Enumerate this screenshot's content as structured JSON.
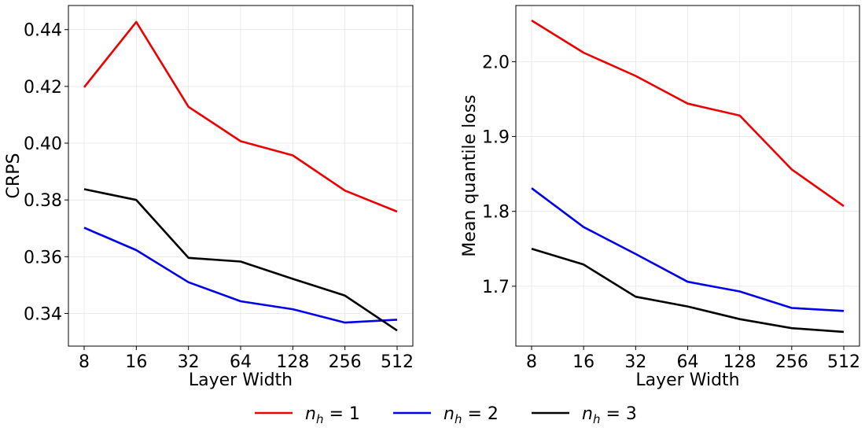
{
  "chart_data": [
    {
      "type": "line",
      "xlabel": "Layer Width",
      "ylabel": "CRPS",
      "x": [
        "8",
        "16",
        "32",
        "64",
        "128",
        "256",
        "512"
      ],
      "ylim": [
        0.3285,
        0.4485
      ],
      "yticks": [
        "0.34",
        "0.36",
        "0.38",
        "0.40",
        "0.42",
        "0.44"
      ],
      "grid": true,
      "series": [
        {
          "name": "n_h = 1",
          "color": "#ee0000",
          "values": [
            0.4197,
            0.4427,
            0.4128,
            0.4007,
            0.3957,
            0.3833,
            0.3759
          ]
        },
        {
          "name": "n_h = 2",
          "color": "#0000ee",
          "values": [
            0.3702,
            0.3623,
            0.351,
            0.3443,
            0.3415,
            0.3368,
            0.3378
          ]
        },
        {
          "name": "n_h = 3",
          "color": "#000000",
          "values": [
            0.3838,
            0.38,
            0.3596,
            0.3583,
            0.3522,
            0.3463,
            0.334
          ]
        }
      ]
    },
    {
      "type": "line",
      "xlabel": "Layer Width",
      "ylabel": "Mean quantile loss",
      "x": [
        "8",
        "16",
        "32",
        "64",
        "128",
        "256",
        "512"
      ],
      "ylim": [
        1.62,
        2.075
      ],
      "yticks": [
        "1.7",
        "1.8",
        "1.9",
        "2.0"
      ],
      "grid": true,
      "series": [
        {
          "name": "n_h = 1",
          "color": "#ee0000",
          "values": [
            2.055,
            2.012,
            1.981,
            1.944,
            1.928,
            1.856,
            1.807
          ]
        },
        {
          "name": "n_h = 2",
          "color": "#0000ee",
          "values": [
            1.831,
            1.779,
            1.743,
            1.706,
            1.693,
            1.671,
            1.667
          ]
        },
        {
          "name": "n_h = 3",
          "color": "#000000",
          "values": [
            1.75,
            1.729,
            1.686,
            1.673,
            1.656,
            1.644,
            1.639
          ]
        }
      ]
    }
  ],
  "legend": {
    "placement": "bottom-center",
    "entries": [
      {
        "var": "n",
        "sub": "h",
        "rest": " = 1",
        "color": "#ee0000"
      },
      {
        "var": "n",
        "sub": "h",
        "rest": " = 2",
        "color": "#0000ee"
      },
      {
        "var": "n",
        "sub": "h",
        "rest": " = 3",
        "color": "#000000"
      }
    ]
  }
}
